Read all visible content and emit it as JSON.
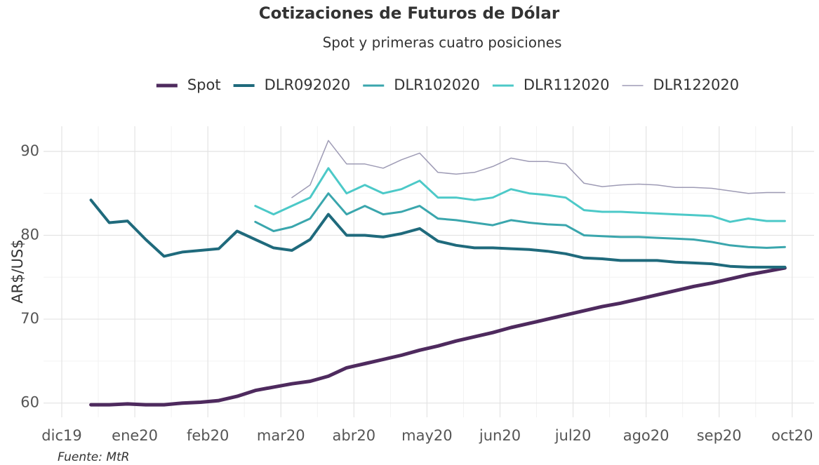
{
  "chart_data": {
    "type": "line",
    "title": "Cotizaciones de Futuros de Dólar",
    "subtitle": "Spot y primeras cuatro posiciones",
    "y_label": "AR$/US$",
    "caption": "Fuente: MtR",
    "legend": "top",
    "grid": true,
    "minor_grid": true,
    "x": [
      0.4,
      0.65,
      0.9,
      1.15,
      1.4,
      1.65,
      1.9,
      2.15,
      2.4,
      2.65,
      2.9,
      3.15,
      3.4,
      3.65,
      3.9,
      4.15,
      4.4,
      4.65,
      4.9,
      5.15,
      5.4,
      5.65,
      5.9,
      6.15,
      6.4,
      6.65,
      6.9,
      7.15,
      7.4,
      7.65,
      7.9,
      8.15,
      8.4,
      8.65,
      8.9,
      9.15,
      9.4,
      9.65,
      9.9
    ],
    "series": [
      {
        "name": "Spot",
        "color": "#4e2a5e",
        "line_width": 5,
        "values": [
          59.8,
          59.8,
          59.9,
          59.8,
          59.8,
          60.0,
          60.1,
          60.3,
          60.8,
          61.5,
          61.9,
          62.3,
          62.6,
          63.2,
          64.2,
          64.7,
          65.2,
          65.7,
          66.3,
          66.8,
          67.4,
          67.9,
          68.4,
          69.0,
          69.5,
          70.0,
          70.5,
          71.0,
          71.5,
          71.9,
          72.4,
          72.9,
          73.4,
          73.9,
          74.3,
          74.8,
          75.3,
          75.7,
          76.1
        ]
      },
      {
        "name": "DLR092020",
        "color": "#1f6a7c",
        "line_width": 4,
        "values": [
          84.2,
          81.5,
          81.7,
          79.5,
          77.5,
          78,
          78.2,
          78.4,
          80.5,
          79.5,
          78.5,
          78.2,
          79.5,
          82.5,
          80,
          80,
          79.8,
          80.2,
          80.8,
          79.3,
          78.8,
          78.5,
          78.5,
          78.4,
          78.3,
          78.1,
          77.8,
          77.3,
          77.2,
          77.0,
          77,
          77,
          76.8,
          76.7,
          76.6,
          76.3,
          76.2,
          76.2,
          76.2
        ]
      },
      {
        "name": "DLR102020",
        "color": "#3aa6ad",
        "line_width": 3,
        "values": [
          null,
          null,
          null,
          null,
          null,
          null,
          null,
          null,
          null,
          81.6,
          80.5,
          81,
          82,
          85,
          82.5,
          83.5,
          82.5,
          82.8,
          83.5,
          82,
          81.8,
          81.5,
          81.2,
          81.8,
          81.5,
          81.3,
          81.2,
          80,
          79.9,
          79.8,
          79.8,
          79.7,
          79.6,
          79.5,
          79.2,
          78.8,
          78.6,
          78.5,
          78.6
        ]
      },
      {
        "name": "DLR112020",
        "color": "#4cc9c8",
        "line_width": 3,
        "values": [
          null,
          null,
          null,
          null,
          null,
          null,
          null,
          null,
          null,
          83.5,
          82.5,
          83.5,
          84.5,
          88,
          85,
          86,
          85,
          85.5,
          86.5,
          84.5,
          84.5,
          84.2,
          84.5,
          85.5,
          85,
          84.8,
          84.5,
          83,
          82.8,
          82.8,
          82.7,
          82.6,
          82.5,
          82.4,
          82.3,
          81.6,
          82,
          81.7,
          81.7
        ]
      },
      {
        "name": "DLR122020",
        "color": "#9e9bb5",
        "line_width": 1.5,
        "values": [
          null,
          null,
          null,
          null,
          null,
          null,
          null,
          null,
          null,
          null,
          null,
          84.5,
          86,
          91.3,
          88.5,
          88.5,
          88,
          89,
          89.8,
          87.5,
          87.3,
          87.5,
          88.2,
          89.2,
          88.8,
          88.8,
          88.5,
          86.2,
          85.8,
          86,
          86.1,
          86,
          85.7,
          85.7,
          85.6,
          85.3,
          85,
          85.1,
          85.1
        ]
      }
    ],
    "xlim": [
      -0.25,
      10.3
    ],
    "xticks": [
      {
        "value": 0,
        "label": "dic19"
      },
      {
        "value": 1,
        "label": "ene20"
      },
      {
        "value": 2,
        "label": "feb20"
      },
      {
        "value": 3,
        "label": "mar20"
      },
      {
        "value": 4,
        "label": "abr20"
      },
      {
        "value": 5,
        "label": "may20"
      },
      {
        "value": 6,
        "label": "jun20"
      },
      {
        "value": 7,
        "label": "jul20"
      },
      {
        "value": 8,
        "label": "ago20"
      },
      {
        "value": 9,
        "label": "sep20"
      },
      {
        "value": 10,
        "label": "oct20"
      }
    ],
    "ylim": [
      58.3,
      93
    ],
    "yticks": [
      60,
      70,
      80,
      90
    ]
  }
}
